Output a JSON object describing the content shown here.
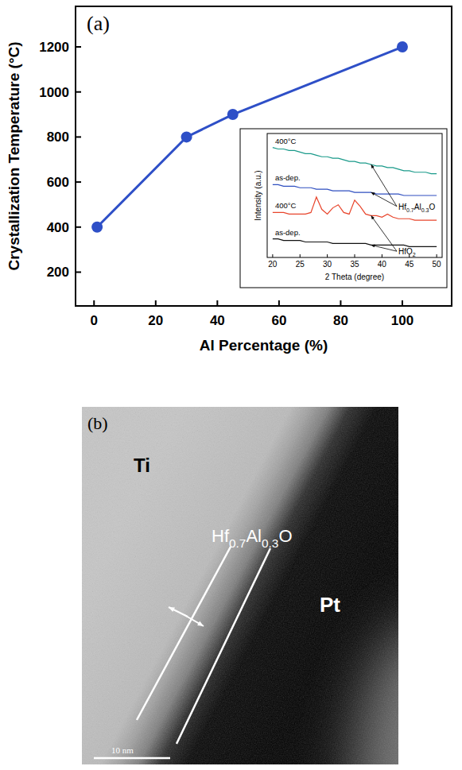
{
  "chart_data": [
    {
      "type": "line",
      "panel_label": "(a)",
      "xlabel": "Al Percentage (%)",
      "ylabel": "Crystallization Temperature (°C)",
      "x": [
        1,
        30,
        45,
        100
      ],
      "values": [
        400,
        800,
        900,
        1200
      ],
      "color": "#2e4fc7",
      "marker": "circle",
      "xlim": [
        -6,
        116
      ],
      "ylim": [
        50,
        1380
      ],
      "xticks": [
        0,
        20,
        40,
        60,
        80,
        100
      ],
      "yticks": [
        200,
        400,
        600,
        800,
        1000,
        1200
      ],
      "grid": false
    },
    {
      "type": "line",
      "xlabel": "2 Theta (degree)",
      "ylabel": "Intensity (a.u.)",
      "x": [
        20,
        21,
        22,
        23,
        24,
        25,
        26,
        27,
        28,
        29,
        30,
        31,
        32,
        33,
        34,
        35,
        36,
        37,
        38,
        39,
        40,
        41,
        42,
        43,
        44,
        45,
        46,
        47,
        48,
        49,
        50
      ],
      "series": [
        {
          "name": "400°C",
          "color": "#1a9a8a",
          "values": [
            96,
            95,
            95,
            94,
            94,
            93,
            92,
            92,
            91,
            90,
            90,
            89,
            89,
            88,
            87,
            87,
            86,
            86,
            85,
            84,
            84,
            83,
            83,
            82,
            81,
            81,
            80,
            80,
            80,
            79,
            79
          ]
        },
        {
          "name": "as-dep.",
          "color": "#2f4fc0",
          "values": [
            72,
            72,
            71,
            71,
            71,
            70,
            70,
            70,
            69,
            69,
            69,
            68,
            68,
            68,
            68,
            67,
            67,
            67,
            67,
            66,
            66,
            66,
            66,
            66,
            65,
            65,
            65,
            65,
            65,
            65,
            65
          ]
        },
        {
          "name": "400°C",
          "color": "#e8452c",
          "values": [
            54,
            54,
            54,
            53,
            53,
            53,
            53,
            54,
            64,
            56,
            53,
            57,
            59,
            54,
            53,
            62,
            58,
            53,
            52,
            52,
            51,
            53,
            51,
            50,
            50,
            50,
            49,
            49,
            49,
            49,
            49
          ]
        },
        {
          "name": "as-dep.",
          "color": "#111111",
          "values": [
            37,
            37,
            36,
            36,
            36,
            36,
            35,
            35,
            35,
            35,
            35,
            34,
            34,
            34,
            34,
            34,
            34,
            34,
            33,
            33,
            33,
            33,
            33,
            33,
            33,
            32,
            32,
            32,
            32,
            32,
            32
          ]
        }
      ],
      "annotations": [
        "Hf0.7Al0.3O",
        "HfO2"
      ],
      "xlim": [
        19,
        51
      ],
      "ylim": [
        25,
        105
      ],
      "xticks": [
        20,
        25,
        30,
        35,
        40,
        45,
        50
      ],
      "tick_labels": "x",
      "grid": false
    }
  ],
  "tem_image": {
    "panel_label": "(b)",
    "labels": [
      "Ti",
      "Hf0.7Al0.3O",
      "Pt"
    ],
    "scale_bar": "10 nm"
  }
}
